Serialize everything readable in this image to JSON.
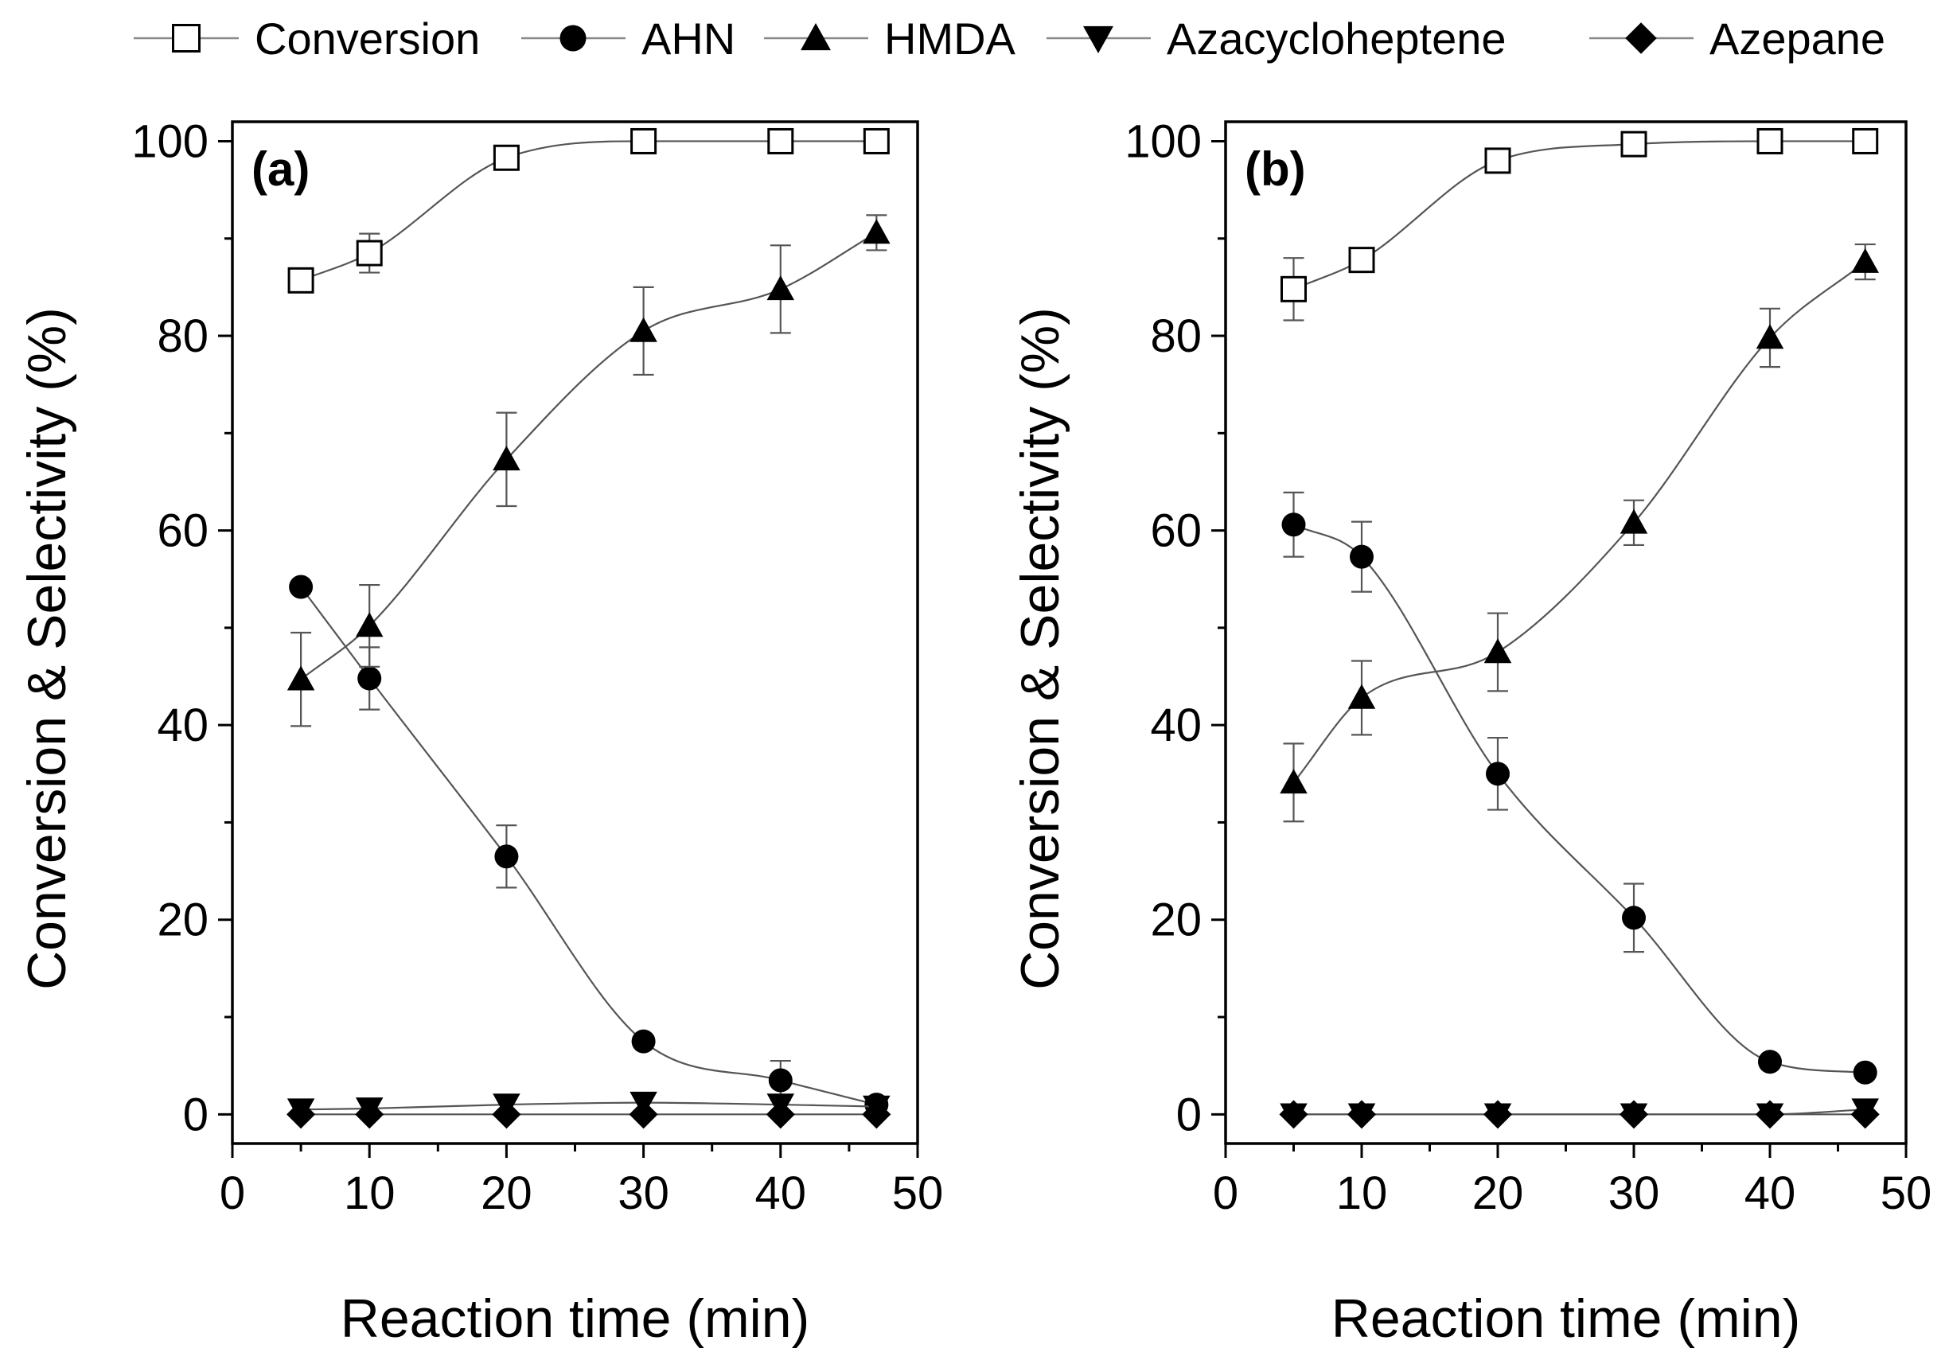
{
  "legend": [
    {
      "key": "conversion",
      "label": "Conversion",
      "marker": "open-square-icon"
    },
    {
      "key": "ahn",
      "label": "AHN",
      "marker": "filled-circle-icon"
    },
    {
      "key": "hmda",
      "label": "HMDA",
      "marker": "filled-triangle-up-icon"
    },
    {
      "key": "azacycloheptene",
      "label": "Azacycloheptene",
      "marker": "filled-triangle-down-icon"
    },
    {
      "key": "azepane",
      "label": "Azepane",
      "marker": "filled-diamond-icon"
    }
  ],
  "chart_data": [
    {
      "type": "scatter",
      "panel_label": "(a)",
      "xlabel": "Reaction time (min)",
      "ylabel": "Conversion & Selectivity (%)",
      "xlim": [
        0,
        50
      ],
      "ylim": [
        -3,
        102
      ],
      "xticks": [
        0,
        10,
        20,
        30,
        40,
        50
      ],
      "yticks": [
        0,
        20,
        40,
        60,
        80,
        100
      ],
      "x": [
        5,
        10,
        20,
        30,
        40,
        47
      ],
      "series": [
        {
          "key": "conversion",
          "name": "Conversion",
          "values": [
            85.7,
            88.5,
            98.3,
            100,
            100,
            100
          ],
          "errors": [
            0.8,
            2.0,
            0.8,
            0.5,
            0.5,
            0.5
          ]
        },
        {
          "key": "ahn",
          "name": "AHN",
          "values": [
            54.2,
            44.8,
            26.5,
            7.5,
            3.5,
            1.0
          ],
          "errors": [
            0,
            3.2,
            3.2,
            0,
            2.0,
            0
          ]
        },
        {
          "key": "hmda",
          "name": "HMDA",
          "values": [
            44.7,
            50.2,
            67.3,
            80.5,
            84.8,
            90.6
          ],
          "errors": [
            4.8,
            4.2,
            4.8,
            4.5,
            4.5,
            1.8
          ]
        },
        {
          "key": "azacycloheptene",
          "name": "Azacycloheptene",
          "values": [
            0.5,
            0.6,
            1.0,
            1.2,
            1.0,
            0.8
          ],
          "errors": [
            0,
            0,
            0,
            0,
            0,
            0
          ]
        },
        {
          "key": "azepane",
          "name": "Azepane",
          "values": [
            0,
            0,
            0,
            0,
            0,
            0
          ],
          "errors": [
            0,
            0,
            0,
            0,
            0,
            0
          ]
        }
      ]
    },
    {
      "type": "scatter",
      "panel_label": "(b)",
      "xlabel": "Reaction time (min)",
      "ylabel": "Conversion & Selectivity (%)",
      "xlim": [
        0,
        50
      ],
      "ylim": [
        -3,
        102
      ],
      "xticks": [
        0,
        10,
        20,
        30,
        40,
        50
      ],
      "yticks": [
        0,
        20,
        40,
        60,
        80,
        100
      ],
      "x": [
        5,
        10,
        20,
        30,
        40,
        47
      ],
      "series": [
        {
          "key": "conversion",
          "name": "Conversion",
          "values": [
            84.8,
            87.8,
            98.0,
            99.7,
            100,
            100
          ],
          "errors": [
            3.2,
            1.0,
            0.5,
            0.5,
            0.3,
            0.3
          ]
        },
        {
          "key": "ahn",
          "name": "AHN",
          "values": [
            60.6,
            57.3,
            35.0,
            20.2,
            5.4,
            4.3
          ],
          "errors": [
            3.3,
            3.6,
            3.7,
            3.5,
            0,
            0
          ]
        },
        {
          "key": "hmda",
          "name": "HMDA",
          "values": [
            34.1,
            42.8,
            47.5,
            60.8,
            79.8,
            87.6
          ],
          "errors": [
            4.0,
            3.8,
            4.0,
            2.3,
            3.0,
            1.8
          ]
        },
        {
          "key": "azacycloheptene",
          "name": "Azacycloheptene",
          "values": [
            0,
            0,
            0,
            0,
            0,
            0.5
          ],
          "errors": [
            0,
            0,
            0,
            0,
            0,
            0
          ]
        },
        {
          "key": "azepane",
          "name": "Azepane",
          "values": [
            0,
            0,
            0,
            0,
            0,
            0
          ],
          "errors": [
            0,
            0,
            0,
            0,
            0,
            0
          ]
        }
      ]
    }
  ]
}
